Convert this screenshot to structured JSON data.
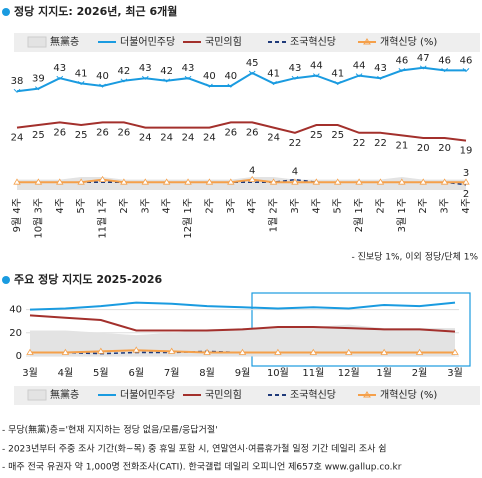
{
  "chart_data": [
    {
      "type": "line",
      "title": "정당 지지도: 2026년, 최근 6개월",
      "categories": [
        "9월 4주",
        "10월 3주",
        "4주",
        "5주",
        "11월 1주",
        "2주",
        "3주",
        "4주",
        "12월 1주",
        "2주",
        "3주",
        "4주",
        "1월 2주",
        "3주",
        "4주",
        "5주",
        "2월 1주",
        "2주",
        "3월 1주",
        "2주",
        "3주",
        "4주"
      ],
      "ylim": [
        0,
        50
      ],
      "series": [
        {
          "name": "無黨층",
          "color": "#e3e3e3",
          "values": [
            4,
            4,
            4,
            5,
            5,
            4,
            4,
            4,
            4,
            4,
            4,
            5,
            5,
            4,
            4,
            4,
            4,
            4,
            5,
            4,
            4,
            4
          ]
        },
        {
          "name": "더불어민주당",
          "color": "#1a9be0",
          "values": [
            38,
            39,
            43,
            41,
            40,
            42,
            43,
            42,
            43,
            40,
            40,
            45,
            41,
            43,
            44,
            41,
            44,
            43,
            46,
            47,
            46,
            46
          ]
        },
        {
          "name": "국민의힘",
          "color": "#a3302c",
          "values": [
            24,
            25,
            26,
            25,
            26,
            26,
            24,
            24,
            24,
            24,
            26,
            26,
            24,
            22,
            25,
            25,
            22,
            22,
            21,
            20,
            20,
            19
          ]
        },
        {
          "name": "조국혁신당",
          "color": "#1f3a7a",
          "values": [
            3,
            3,
            3,
            3,
            3,
            3,
            3,
            3,
            3,
            3,
            3,
            3,
            3,
            4,
            3,
            3,
            3,
            3,
            3,
            3,
            3,
            2
          ]
        },
        {
          "name": "개혁신당 (%)",
          "color": "#f5a04a",
          "values": [
            3,
            3,
            3,
            3,
            4,
            3,
            3,
            3,
            3,
            3,
            3,
            4,
            3,
            3,
            3,
            3,
            3,
            3,
            3,
            3,
            3,
            3
          ]
        }
      ],
      "annotations": [
        "- 진보당 1%, 이외 정당/단체 1%"
      ]
    },
    {
      "type": "line",
      "title": "주요 정당 지지도 2025-2026",
      "categories": [
        "3월",
        "4월",
        "5월",
        "6월",
        "7월",
        "8월",
        "9월",
        "10월",
        "11월",
        "12월",
        "1월",
        "2월",
        "3월"
      ],
      "ylim": [
        0,
        50
      ],
      "yticks": [
        0,
        20,
        40
      ],
      "series": [
        {
          "name": "無黨층",
          "color": "#e3e3e3",
          "values": [
            22,
            22,
            20,
            18,
            20,
            23,
            24,
            25,
            25,
            27,
            24,
            24,
            24
          ]
        },
        {
          "name": "더불어민주당",
          "color": "#1a9be0",
          "values": [
            40,
            41,
            43,
            46,
            45,
            43,
            42,
            41,
            42,
            41,
            44,
            43,
            46
          ]
        },
        {
          "name": "국민의힘",
          "color": "#a3302c",
          "values": [
            35,
            33,
            31,
            22,
            22,
            22,
            23,
            25,
            25,
            24,
            23,
            23,
            21
          ]
        },
        {
          "name": "조국혁신당",
          "color": "#1f3a7a",
          "values": [
            3,
            3,
            2,
            3,
            3,
            4,
            3,
            3,
            3,
            3,
            3,
            3,
            3
          ]
        },
        {
          "name": "개혁신당 (%)",
          "color": "#f5a04a",
          "values": [
            3,
            3,
            4,
            5,
            4,
            3,
            3,
            3,
            3,
            3,
            3,
            3,
            3
          ]
        }
      ],
      "notes": [
        "- 무당(無黨)층='현재 지지하는 정당 없음/모름/응답거절'",
        "- 2023년부터 주중 조사 기간(화~목) 중 휴일 포함 시, 연말연시·여름휴가철 일정 기간 데일리 조사 쉼",
        "- 매주 전국 유권자 약 1,000명 전화조사(CATI). 한국갤럽 데일리 오피니언 제657호 www.gallup.co.kr"
      ]
    }
  ]
}
